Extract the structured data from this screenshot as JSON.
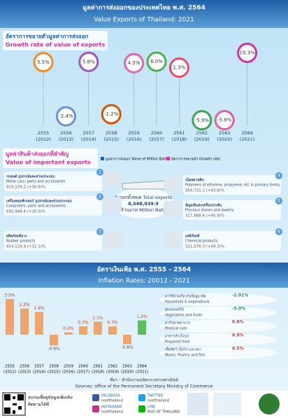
{
  "header": {
    "title_th": "มูลค่าการส่งออกของประเทศไทย พ.ศ. 2564",
    "title_en": "Value Exports of Thailand: 2021"
  },
  "chart_data": [
    {
      "type": "dot",
      "title_th": "อัตราการขยายตัวมูลค่าการส่งออก",
      "title": "Growth rate of value of exports",
      "categories": [
        "2555",
        "2556",
        "2557",
        "2558",
        "2559",
        "2560",
        "2561",
        "2562",
        "2563",
        "2564"
      ],
      "categories_en": [
        "(2012)",
        "(2013)",
        "(2014)",
        "(2015)",
        "(2016)",
        "(2017)",
        "(2018)",
        "(2019)",
        "(2020)",
        "(2021)"
      ],
      "values": [
        5.5,
        -2.4,
        5.8,
        -1.2,
        4.5,
        6.0,
        1.3,
        -5.9,
        -5.8,
        19.3
      ],
      "value_labels": [
        "5.5%",
        "-2.4%",
        "5.8%",
        "-1.2%",
        "4.5%",
        "6.0%",
        "1.3%",
        "-5.9%",
        "-5.8%",
        "19.3%"
      ],
      "colors": [
        "#f28c28",
        "#6b8fd6",
        "#9b59b6",
        "#d35400",
        "#e066a8",
        "#4caf50",
        "#e74c6c",
        "#3aa655",
        "#e0609a",
        "#d0309a"
      ]
    },
    {
      "type": "bar",
      "categories": [
        "2555",
        "2556",
        "2557",
        "2558",
        "2559",
        "2560",
        "2561",
        "2562",
        "2563",
        "2564"
      ],
      "categories_en": [
        "(2012)",
        "(2013)",
        "(2014)",
        "(2015)",
        "(2016)",
        "(2017)",
        "(2018)",
        "(2019)",
        "(2020)",
        "(2021)"
      ],
      "values": [
        3.0,
        2.2,
        1.9,
        -0.9,
        0.2,
        0.7,
        1.1,
        0.7,
        -0.8,
        1.2
      ],
      "value_labels": [
        "3.0%",
        "2.2%",
        "1.9%",
        "-0.9%",
        "0.2%",
        "0.7%",
        "1.1%",
        "0.7%",
        "-0.8%",
        "1.2%"
      ],
      "colors": [
        "#eea46a",
        "#eea46a",
        "#eea46a",
        "#eea46a",
        "#eea46a",
        "#eea46a",
        "#eea46a",
        "#eea46a",
        "#eea46a",
        "#5cbf5c"
      ]
    }
  ],
  "exports": {
    "title_th": "มูลค่าสินค้าส่งออกที่สำคัญ",
    "title_en": "Value of important exports",
    "legend_value": "มูลค่าการส่งออก Value of Million Baht",
    "legend_growth": "อัตราการขยายตัว Growth rate",
    "total_th": "ส่งออกทั้งหมด Total exports",
    "total_value": "8,548,939.9",
    "total_unit": "ล้านบาท Million Baht",
    "items": [
      {
        "no": "1",
        "name_th": "รถยนต์ อุปกรณ์และส่วนประกอบ",
        "name_en": "Motor cars, parts and accessories",
        "value": "919,159.2 (+30.6)%"
      },
      {
        "no": "2",
        "name_th": "เครื่องคอมพิวเตอร์ อุปกรณ์และส่วนประกอบ",
        "name_en": "Computers, parts and accessories",
        "value": "692,948.4 (+20.0)%"
      },
      {
        "no": "3",
        "name_th": "ผลิตภัณฑ์ยาง",
        "name_en": "Rubber products",
        "value": "454,129.9 (+31.1)%"
      },
      {
        "no": "4",
        "name_th": "เม็ดพลาสติก",
        "name_en": "Polymers of ethylene, propylene, etc in primary forms",
        "value": "354,731.2 (+43.6)%"
      },
      {
        "no": "5",
        "name_th": "อัญมณีและเครื่องประดับ",
        "name_en": "Precious stones and jewelry",
        "value": "317,888.6 (+45.9)%"
      },
      {
        "no": "6",
        "name_th": "เคมีภัณฑ์",
        "name_en": "Chemical products",
        "value": "311,076.0 (+49.3)%"
      }
    ]
  },
  "inflation": {
    "title_th": "อัตราเงินเฟ้อ พ.ศ. 2555 - 2564",
    "title_en": "Inflation Rates: 20012 - 2021",
    "items": [
      {
        "name_th": "ค่าใช้จ่ายเกี่ยวกับที่อยู่อาศัย",
        "name_en": "Household & expenditure",
        "value": "-2.01%"
      },
      {
        "name_th": "ผักและผลไม้",
        "name_en": "Vegetables and fruits",
        "value": "-5.0%"
      },
      {
        "name_th": "ค่ารักษาพยาบาล",
        "name_en": "Medical care",
        "value": "0.6%"
      },
      {
        "name_th": "อาหารสำเร็จรูป",
        "name_en": "Prepared food",
        "value": "0.9%"
      },
      {
        "name_th": "เนื้อสัตว์ เป็ดไก่ และปลา",
        "name_en": "Meats, Poultry and fish",
        "value": "0.5%"
      }
    ],
    "source_th": "ที่มา : สำนักงานปลัดกระทรวงพาณิชย์",
    "source_en": "Sources: office of the Permanent Secretary Ministry of Commerce"
  },
  "footer": {
    "scan_th": "สแกนเพื่อดูข้อมูลเพิ่มเติม",
    "follow_th": "ติดตามได้ที่",
    "social": [
      {
        "name": "FACEBOOK",
        "handle": "nsofthailand"
      },
      {
        "name": "TWITTER",
        "handle": "nsofthailand"
      },
      {
        "name": "INSTAGRAM",
        "handle": "nsofthailand"
      },
      {
        "name": "LINE",
        "handle": "NSO OF THAILAND"
      }
    ]
  }
}
